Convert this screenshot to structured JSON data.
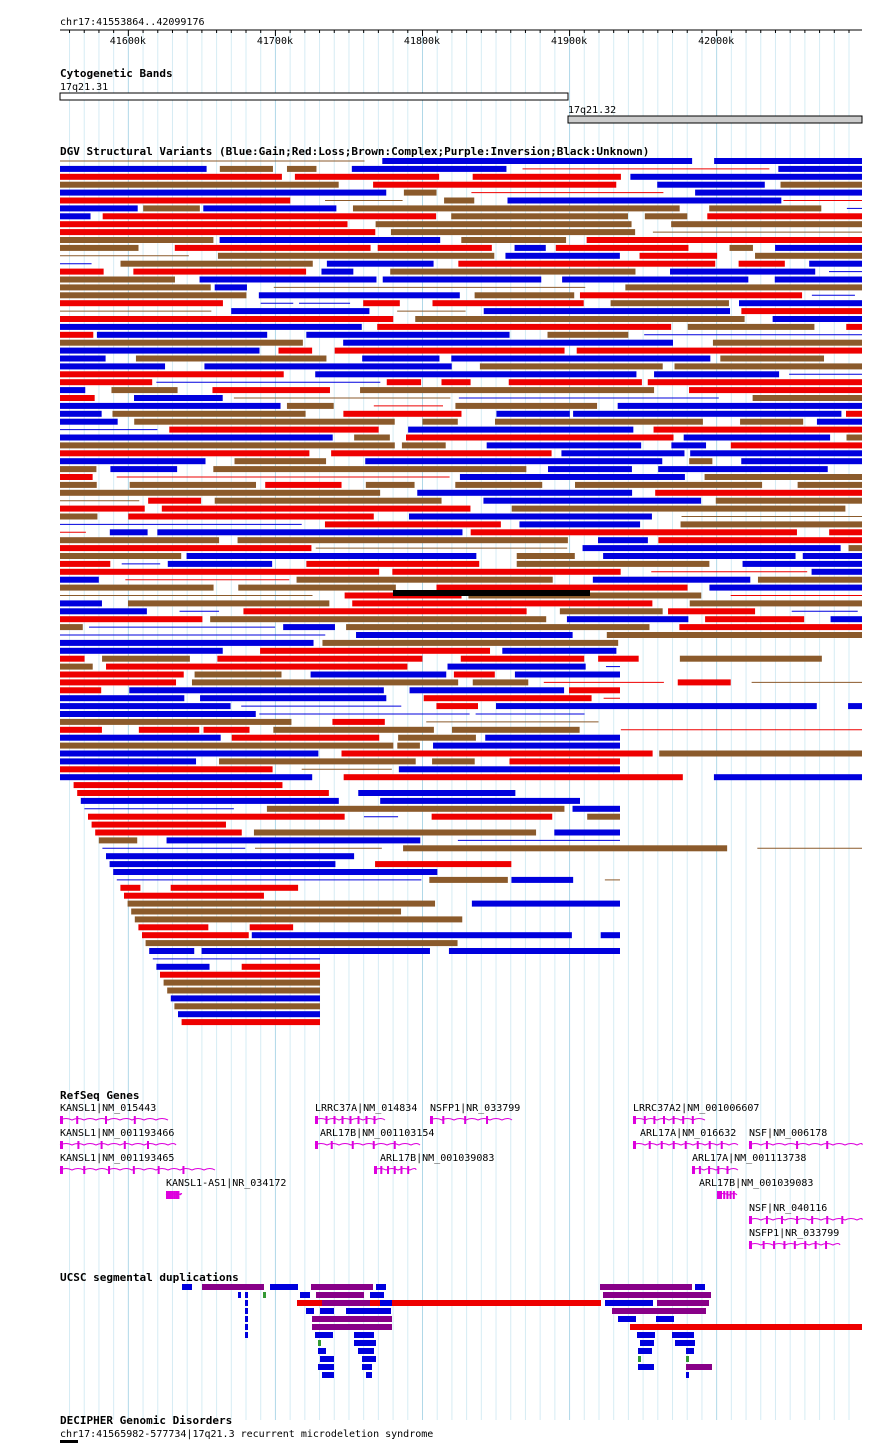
{
  "ruler": {
    "coord_label": "chr17:41553864..42099176",
    "start": 41553864,
    "end": 42099176,
    "ticks": [
      "41600k",
      "41700k",
      "41800k",
      "41900k",
      "42000k"
    ]
  },
  "cyto": {
    "title": "Cytogenetic Bands",
    "bands": [
      {
        "name": "17q21.31",
        "start": 41553864,
        "end": 41900000,
        "color": "#ffffff"
      },
      {
        "name": "17q21.32",
        "start": 41900000,
        "end": 42099176,
        "color": "#cccccc"
      }
    ]
  },
  "dgv": {
    "title": "DGV Structural Variants (Blue:Gain;Red:Loss;Brown:Complex;Purple:Inversion;Black:Unknown)",
    "colors": {
      "gain": "#0000dd",
      "loss": "#ee0000",
      "complex": "#8b5a2b",
      "inversion": "#880088",
      "unknown": "#000000"
    }
  },
  "refseq": {
    "title": "RefSeq Genes",
    "color": "#dd00dd",
    "genes": [
      {
        "label": "KANSL1|NM_015443"
      },
      {
        "label": "KANSL1|NM_001193466"
      },
      {
        "label": "KANSL1|NM_001193465"
      },
      {
        "label": "KANSL1-AS1|NR_034172"
      },
      {
        "label": "LRRC37A|NM_014834"
      },
      {
        "label": "NSFP1|NR_033799"
      },
      {
        "label": "ARL17B|NM_001103154"
      },
      {
        "label": "ARL17B|NM_001039083"
      },
      {
        "label": "LRRC37A2|NM_001006607"
      },
      {
        "label": "ARL17A|NM_016632"
      },
      {
        "label": "NSF|NM_006178"
      },
      {
        "label": "ARL17A|NM_001113738"
      },
      {
        "label": "ARL17B|NM_001039083"
      },
      {
        "label": "NSF|NR_040116"
      },
      {
        "label": "NSFP1|NR_033799"
      }
    ]
  },
  "segdups": {
    "title": "UCSC segmental duplications"
  },
  "decipher": {
    "title": "DECIPHER Genomic Disorders",
    "item": "chr17:41565982-577734|17q21.3 recurrent microdeletion syndrome"
  }
}
